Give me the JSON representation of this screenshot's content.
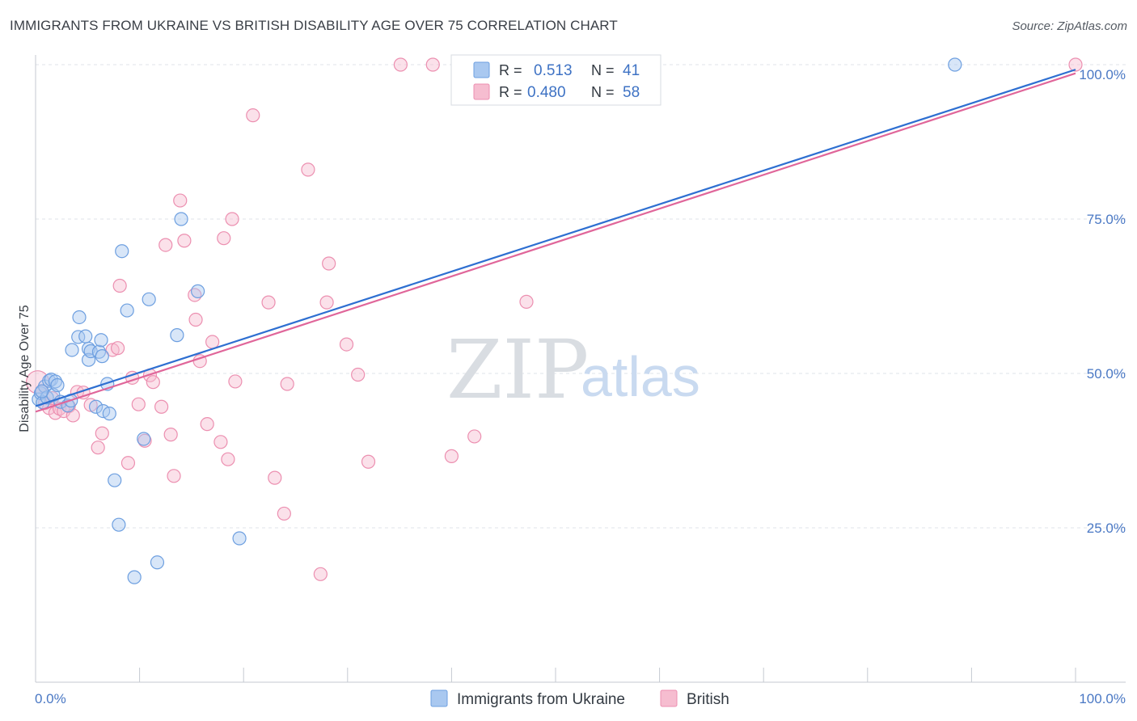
{
  "header": {
    "title": "IMMIGRANTS FROM UKRAINE VS BRITISH DISABILITY AGE OVER 75 CORRELATION CHART",
    "source": "Source: ZipAtlas.com"
  },
  "watermark": {
    "zip": "ZIP",
    "atlas": "atlas"
  },
  "colors": {
    "blue_fill": "#a9c8f0",
    "blue_stroke": "#6d9fe0",
    "blue_line": "#2e6fd1",
    "pink_fill": "#f6bdd0",
    "pink_stroke": "#ec8fb0",
    "pink_line": "#e0669a",
    "grid": "#dfe3e8",
    "tick_text": "#4a78c4"
  },
  "legend": {
    "rows": [
      {
        "r_label": "R = ",
        "r_value": "0.513",
        "n_label": "N = ",
        "n_value": "41",
        "color": "blue"
      },
      {
        "r_label": "R = ",
        "r_value": "0.480",
        "n_label": "N = ",
        "n_value": "58",
        "color": "pink"
      }
    ]
  },
  "bottom_legend": [
    "Immigrants from Ukraine",
    "British"
  ],
  "chart_data": {
    "type": "scatter",
    "title": "IMMIGRANTS FROM UKRAINE VS BRITISH DISABILITY AGE OVER 75 CORRELATION CHART",
    "xlabel": "",
    "ylabel": "Disability Age Over 75",
    "xlim": [
      0,
      100
    ],
    "ylim": [
      0,
      105
    ],
    "x_tick_labels": [
      {
        "value": 0,
        "label": "0.0%"
      },
      {
        "value": 100,
        "label": "100.0%"
      }
    ],
    "y_tick_labels": [
      {
        "value": 25,
        "label": "25.0%"
      },
      {
        "value": 50,
        "label": "50.0%"
      },
      {
        "value": 75,
        "label": "75.0%"
      },
      {
        "value": 100,
        "label": "100.0%"
      }
    ],
    "grid": true,
    "legend_position": "top-center",
    "series": [
      {
        "name": "Immigrants from Ukraine",
        "color": "blue",
        "r": 0.513,
        "n": 41,
        "trend": {
          "x": [
            0,
            100
          ],
          "y": [
            44.7,
            99.2
          ]
        },
        "points": [
          [
            0.3,
            45.8
          ],
          [
            0.5,
            46.8
          ],
          [
            0.7,
            45.3
          ],
          [
            0.9,
            47.9
          ],
          [
            1.1,
            46.1
          ],
          [
            1.3,
            48.8
          ],
          [
            1.5,
            49.0
          ],
          [
            1.7,
            46.5
          ],
          [
            1.9,
            48.7
          ],
          [
            2.1,
            48.1
          ],
          [
            2.4,
            45.4
          ],
          [
            3.1,
            44.8
          ],
          [
            3.4,
            45.6
          ],
          [
            3.5,
            53.8
          ],
          [
            4.1,
            55.9
          ],
          [
            4.2,
            59.1
          ],
          [
            4.8,
            56.0
          ],
          [
            5.1,
            54.0
          ],
          [
            5.1,
            52.2
          ],
          [
            5.3,
            53.6
          ],
          [
            5.8,
            44.6
          ],
          [
            6.1,
            53.5
          ],
          [
            6.3,
            55.4
          ],
          [
            6.4,
            52.8
          ],
          [
            6.5,
            43.9
          ],
          [
            6.9,
            48.3
          ],
          [
            7.1,
            43.5
          ],
          [
            7.6,
            32.7
          ],
          [
            8.0,
            25.5
          ],
          [
            8.3,
            69.8
          ],
          [
            8.8,
            60.2
          ],
          [
            9.5,
            17.0
          ],
          [
            10.4,
            39.4
          ],
          [
            10.9,
            62.0
          ],
          [
            11.7,
            19.4
          ],
          [
            13.6,
            56.2
          ],
          [
            14.0,
            75.0
          ],
          [
            15.6,
            63.3
          ],
          [
            19.6,
            23.3
          ],
          [
            88.4,
            100.0
          ],
          [
            0.6,
            47.1
          ]
        ]
      },
      {
        "name": "British",
        "color": "pink",
        "r": 0.48,
        "n": 58,
        "trend": {
          "x": [
            0,
            100
          ],
          "y": [
            43.8,
            98.6
          ]
        },
        "points": [
          [
            0.2,
            48.6
          ],
          [
            0.6,
            47.1
          ],
          [
            0.9,
            45.2
          ],
          [
            1.3,
            44.4
          ],
          [
            1.6,
            46.0
          ],
          [
            1.9,
            43.6
          ],
          [
            2.3,
            44.3
          ],
          [
            2.7,
            43.9
          ],
          [
            3.2,
            44.7
          ],
          [
            3.6,
            43.2
          ],
          [
            4.0,
            47.0
          ],
          [
            4.6,
            46.9
          ],
          [
            5.3,
            44.9
          ],
          [
            6.0,
            38.0
          ],
          [
            6.4,
            40.3
          ],
          [
            7.4,
            53.8
          ],
          [
            7.9,
            54.1
          ],
          [
            8.1,
            64.2
          ],
          [
            8.9,
            35.5
          ],
          [
            9.3,
            49.3
          ],
          [
            9.9,
            45.0
          ],
          [
            10.5,
            39.1
          ],
          [
            11.0,
            49.7
          ],
          [
            11.3,
            48.6
          ],
          [
            12.1,
            44.6
          ],
          [
            12.5,
            70.8
          ],
          [
            13.0,
            40.1
          ],
          [
            13.3,
            33.4
          ],
          [
            13.9,
            78.0
          ],
          [
            14.3,
            71.5
          ],
          [
            15.4,
            58.7
          ],
          [
            15.3,
            62.7
          ],
          [
            15.8,
            52.0
          ],
          [
            16.5,
            41.8
          ],
          [
            17.0,
            55.1
          ],
          [
            17.8,
            38.9
          ],
          [
            18.1,
            71.9
          ],
          [
            18.5,
            36.1
          ],
          [
            18.9,
            75.0
          ],
          [
            19.2,
            48.7
          ],
          [
            20.9,
            91.8
          ],
          [
            22.4,
            61.5
          ],
          [
            23.0,
            33.1
          ],
          [
            23.9,
            27.3
          ],
          [
            24.2,
            48.3
          ],
          [
            26.2,
            83.0
          ],
          [
            27.4,
            17.5
          ],
          [
            28.0,
            61.5
          ],
          [
            28.2,
            67.8
          ],
          [
            29.9,
            54.7
          ],
          [
            31.0,
            49.8
          ],
          [
            32.0,
            35.7
          ],
          [
            35.1,
            100.0
          ],
          [
            38.2,
            100.0
          ],
          [
            40.0,
            36.6
          ],
          [
            42.2,
            39.8
          ],
          [
            47.2,
            61.6
          ],
          [
            100.0,
            100.0
          ]
        ]
      }
    ]
  }
}
